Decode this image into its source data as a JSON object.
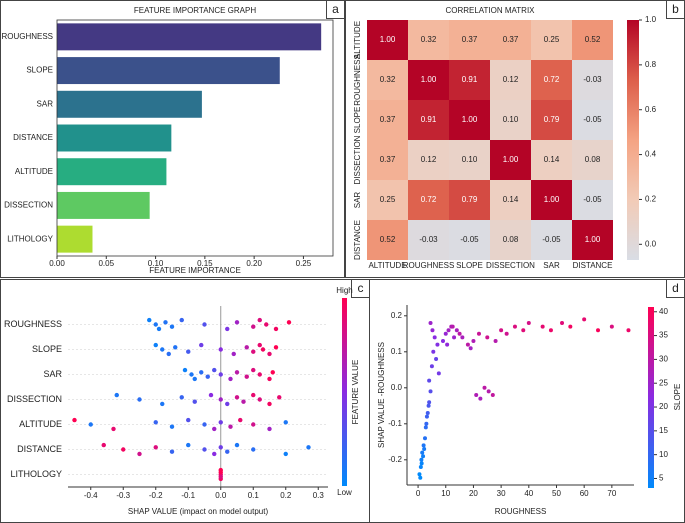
{
  "chart_data": [
    {
      "type": "bar",
      "panel_label": "a",
      "title": "FEATURE IMPORTANCE GRAPH",
      "x_label": "FEATURE IMPORTANCE",
      "categories": [
        "ROUGHNESS",
        "SLOPE",
        "SAR",
        "DISTANCE",
        "ALTITUDE",
        "DISSECTION",
        "LITHOLOGY"
      ],
      "values": [
        0.268,
        0.226,
        0.147,
        0.116,
        0.111,
        0.094,
        0.036
      ],
      "colors": [
        "#443983",
        "#3b518b",
        "#2c728e",
        "#21918c",
        "#27ad81",
        "#5ec962",
        "#addc30"
      ],
      "xlim": [
        0,
        0.28
      ],
      "xticks": [
        {
          "value": 0,
          "label": "0.00"
        },
        {
          "value": 0.05,
          "label": "0.05"
        },
        {
          "value": 0.1,
          "label": "0.10"
        },
        {
          "value": 0.15,
          "label": "0.15"
        },
        {
          "value": 0.2,
          "label": "0.20"
        },
        {
          "value": 0.25,
          "label": "0.25"
        }
      ]
    },
    {
      "type": "heatmap",
      "panel_label": "b",
      "title": "CORRELATION MATRIX",
      "rows": [
        "ALTITUDE",
        "ROUGHNESS",
        "SLOPE",
        "DISSECTION",
        "SAR",
        "DISTANCE"
      ],
      "columns": [
        "ALTITUDE",
        "ROUGHNESS",
        "SLOPE",
        "DISSECTION",
        "SAR",
        "DISTANCE"
      ],
      "values": [
        [
          1.0,
          0.32,
          0.37,
          0.37,
          0.25,
          0.52
        ],
        [
          0.32,
          1.0,
          0.91,
          0.12,
          0.72,
          -0.03
        ],
        [
          0.37,
          0.91,
          1.0,
          0.1,
          0.79,
          -0.05
        ],
        [
          0.37,
          0.12,
          0.1,
          1.0,
          0.14,
          0.08
        ],
        [
          0.25,
          0.72,
          0.79,
          0.14,
          1.0,
          -0.05
        ],
        [
          0.52,
          -0.03,
          -0.05,
          0.08,
          -0.05,
          1.0
        ]
      ],
      "value_labels": [
        [
          "1.00",
          "0.32",
          "0.37",
          "0.37",
          "0.25",
          "0.52"
        ],
        [
          "0.32",
          "1.00",
          "0.91",
          "0.12",
          "0.72",
          "-0.03"
        ],
        [
          "0.37",
          "0.91",
          "1.00",
          "0.10",
          "0.79",
          "-0.05"
        ],
        [
          "0.37",
          "0.12",
          "0.10",
          "1.00",
          "0.14",
          "0.08"
        ],
        [
          "0.25",
          "0.72",
          "0.79",
          "0.14",
          "1.00",
          "-0.05"
        ],
        [
          "0.52",
          "-0.03",
          "-0.05",
          "0.08",
          "-0.05",
          "1.00"
        ]
      ],
      "colors": [
        "#d9dde5",
        "#f2cbb7",
        "#f4a383",
        "#dd5f4b",
        "#b40426"
      ],
      "clim": [
        -0.07,
        1.0
      ],
      "cticks": [
        {
          "value": 0,
          "label": "0.0"
        },
        0.2,
        0.4,
        0.6,
        0.8,
        {
          "value": 1,
          "label": "1.0"
        }
      ]
    },
    {
      "type": "beeswarm",
      "panel_label": "c",
      "x_label": "SHAP VALUE (impact on model output)",
      "color_label": "FEATURE VALUE",
      "color_high": "High",
      "color_low": "Low",
      "colors": [
        "#008afb",
        "#8a2be2",
        "#ff0052"
      ],
      "xlim": [
        -0.47,
        0.33
      ],
      "xticks": [
        -0.4,
        -0.3,
        -0.2,
        -0.1,
        {
          "value": 0,
          "label": "0.0"
        },
        0.1,
        0.2,
        0.3
      ],
      "series": [
        {
          "name": "ROUGHNESS",
          "values": [
            -0.22,
            -0.2,
            -0.19,
            -0.17,
            -0.15,
            -0.12,
            -0.05,
            0.02,
            0.05,
            0.1,
            0.12,
            0.14,
            0.17,
            0.21
          ],
          "feature_values": [
            0.05,
            0.1,
            0.08,
            0.12,
            0.1,
            0.2,
            0.3,
            0.45,
            0.6,
            0.8,
            0.85,
            0.9,
            0.95,
            1.0
          ]
        },
        {
          "name": "SLOPE",
          "values": [
            -0.2,
            -0.18,
            -0.16,
            -0.14,
            -0.1,
            -0.06,
            0.0,
            0.04,
            0.08,
            0.1,
            0.12,
            0.13,
            0.15,
            0.17
          ],
          "feature_values": [
            0.05,
            0.1,
            0.15,
            0.12,
            0.25,
            0.4,
            0.5,
            0.6,
            0.7,
            0.85,
            0.9,
            0.95,
            0.9,
            1.0
          ]
        },
        {
          "name": "SAR",
          "values": [
            -0.11,
            -0.09,
            -0.08,
            -0.06,
            -0.04,
            -0.02,
            0.0,
            0.03,
            0.05,
            0.08,
            0.1,
            0.12,
            0.15,
            0.16
          ],
          "feature_values": [
            0.05,
            0.1,
            0.1,
            0.15,
            0.2,
            0.3,
            0.4,
            0.6,
            0.7,
            0.8,
            0.85,
            0.9,
            0.95,
            1.0
          ]
        },
        {
          "name": "DISSECTION",
          "values": [
            -0.32,
            -0.25,
            -0.18,
            -0.12,
            -0.08,
            -0.03,
            0.0,
            0.02,
            0.05,
            0.07,
            0.1,
            0.12,
            0.15,
            0.18
          ],
          "feature_values": [
            0.1,
            0.15,
            0.1,
            0.2,
            0.3,
            0.5,
            0.6,
            0.4,
            0.8,
            0.7,
            0.9,
            0.85,
            0.95,
            0.9
          ]
        },
        {
          "name": "ALTITUDE",
          "values": [
            -0.45,
            -0.4,
            -0.33,
            -0.2,
            -0.15,
            -0.1,
            -0.05,
            -0.02,
            0.0,
            0.03,
            0.06,
            0.1,
            0.15,
            0.2
          ],
          "feature_values": [
            1.0,
            0.1,
            0.9,
            0.2,
            0.1,
            0.3,
            0.2,
            0.6,
            0.4,
            0.7,
            0.9,
            0.8,
            0.6,
            0.1
          ]
        },
        {
          "name": "DISTANCE",
          "values": [
            -0.36,
            -0.3,
            -0.25,
            -0.2,
            -0.15,
            -0.1,
            -0.05,
            -0.02,
            0.0,
            0.02,
            0.05,
            0.1,
            0.2,
            0.27
          ],
          "feature_values": [
            0.9,
            0.95,
            0.8,
            0.85,
            0.2,
            0.1,
            0.3,
            0.5,
            0.4,
            0.2,
            0.1,
            0.15,
            0.05,
            0.1
          ]
        },
        {
          "name": "LITHOLOGY",
          "values": [
            0.0,
            0.0,
            0.0,
            0.0,
            0.0
          ],
          "feature_values": [
            1.0,
            0.9,
            0.95,
            1.0,
            0.85
          ]
        }
      ]
    },
    {
      "type": "scatter",
      "panel_label": "d",
      "x_label": "ROUGHNESS",
      "y_label": "SHAP VALUE -ROUGHNESS",
      "color_label": "SLOPE",
      "colors": [
        "#008afb",
        "#8a2be2",
        "#ff0052"
      ],
      "xlim": [
        -4,
        78
      ],
      "xticks": [
        0,
        10,
        20,
        30,
        40,
        50,
        60,
        70
      ],
      "ylim": [
        -0.27,
        0.23
      ],
      "yticks": [
        -0.2,
        -0.1,
        {
          "value": 0,
          "label": "0.0"
        },
        0.1,
        0.2
      ],
      "clim": [
        3,
        41
      ],
      "cticks": [
        5,
        10,
        15,
        20,
        25,
        30,
        35,
        40
      ],
      "x": [
        0.5,
        1,
        1.2,
        1.5,
        0.8,
        2,
        1.8,
        2.5,
        1.3,
        2.2,
        3,
        3.5,
        2.8,
        4,
        3.2,
        4.5,
        3.8,
        4,
        5,
        5.5,
        6,
        4.5,
        6.5,
        7,
        5.2,
        7.5,
        9,
        10,
        11,
        12,
        13,
        14,
        15,
        10.5,
        12.5,
        16,
        18,
        20,
        22,
        25,
        28,
        30,
        19,
        21,
        22.5,
        24,
        25.5,
        27,
        32,
        35,
        38,
        40,
        45,
        48,
        52,
        55,
        60,
        65,
        70,
        76
      ],
      "values": [
        -0.24,
        -0.22,
        -0.2,
        -0.18,
        -0.25,
        -0.16,
        -0.19,
        -0.14,
        -0.21,
        -0.17,
        -0.1,
        -0.07,
        -0.11,
        -0.04,
        -0.08,
        -0.01,
        -0.05,
        0.02,
        0.06,
        0.1,
        0.14,
        0.18,
        0.08,
        0.12,
        0.16,
        0.04,
        0.13,
        0.15,
        0.16,
        0.17,
        0.14,
        0.16,
        0.15,
        0.12,
        0.17,
        0.14,
        0.12,
        0.13,
        0.15,
        0.14,
        0.13,
        0.16,
        0.11,
        -0.02,
        -0.03,
        0.0,
        -0.01,
        -0.02,
        0.15,
        0.17,
        0.16,
        0.18,
        0.17,
        0.16,
        0.18,
        0.17,
        0.19,
        0.16,
        0.17,
        0.16
      ],
      "color_values": [
        3,
        4,
        5,
        6,
        3,
        7,
        5,
        8,
        4,
        6,
        10,
        12,
        9,
        14,
        11,
        15,
        13,
        16,
        18,
        20,
        22,
        25,
        17,
        21,
        24,
        19,
        22,
        24,
        26,
        28,
        25,
        27,
        30,
        23,
        29,
        27,
        30,
        28,
        32,
        33,
        29,
        34,
        26,
        28,
        27,
        30,
        29,
        31,
        33,
        35,
        36,
        34,
        37,
        38,
        36,
        39,
        37,
        40,
        35,
        38
      ]
    }
  ]
}
